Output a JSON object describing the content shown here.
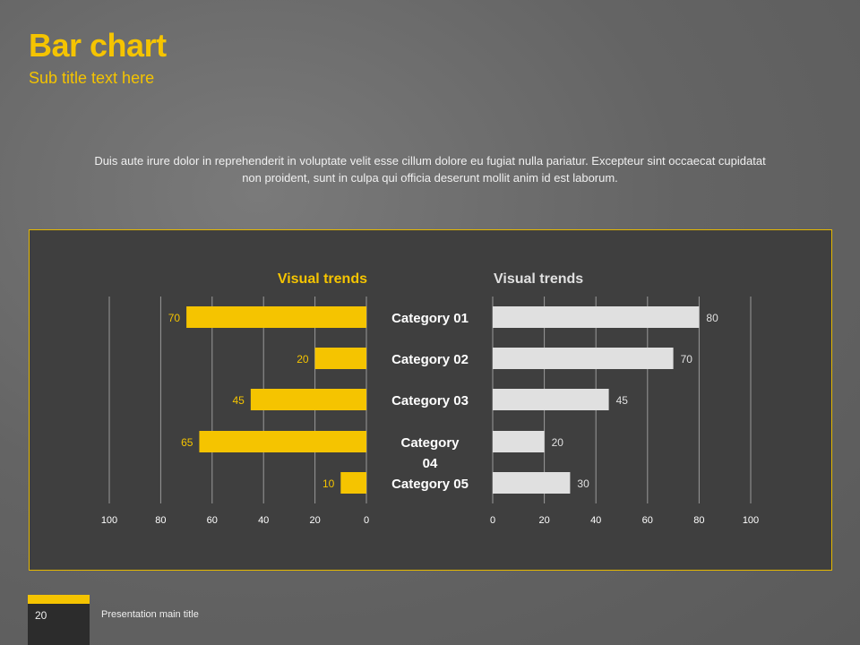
{
  "header": {
    "title": "Bar chart",
    "subtitle": "Sub title text here"
  },
  "body_text": "Duis aute irure dolor in reprehenderit in voluptate velit esse cillum dolore eu fugiat nulla pariatur. Excepteur sint occaecat cupidatat non proident, sunt in culpa qui officia deserunt mollit anim id est laborum.",
  "footer": {
    "page_number": "20",
    "presentation_title": "Presentation main title"
  },
  "colors": {
    "accent": "#f5c400",
    "light_bar": "#e0e0e0",
    "panel": "#3f3f3f"
  },
  "chart_data": [
    {
      "type": "bar",
      "orientation": "horizontal-reversed",
      "title": "Visual trends",
      "categories": [
        "Category 01",
        "Category 02",
        "Category 03",
        "Category 04",
        "Category 05"
      ],
      "values": [
        70,
        20,
        45,
        65,
        10
      ],
      "xlim": [
        0,
        100
      ],
      "ticks": [
        0,
        20,
        40,
        60,
        80,
        100
      ],
      "color": "#f5c400",
      "grid": true
    },
    {
      "type": "bar",
      "orientation": "horizontal",
      "title": "Visual trends",
      "categories": [
        "Category 01",
        "Category 02",
        "Category 03",
        "Category 04",
        "Category 05"
      ],
      "values": [
        80,
        70,
        45,
        20,
        30
      ],
      "xlim": [
        0,
        100
      ],
      "ticks": [
        0,
        20,
        40,
        60,
        80,
        100
      ],
      "color": "#e0e0e0",
      "grid": true
    }
  ]
}
